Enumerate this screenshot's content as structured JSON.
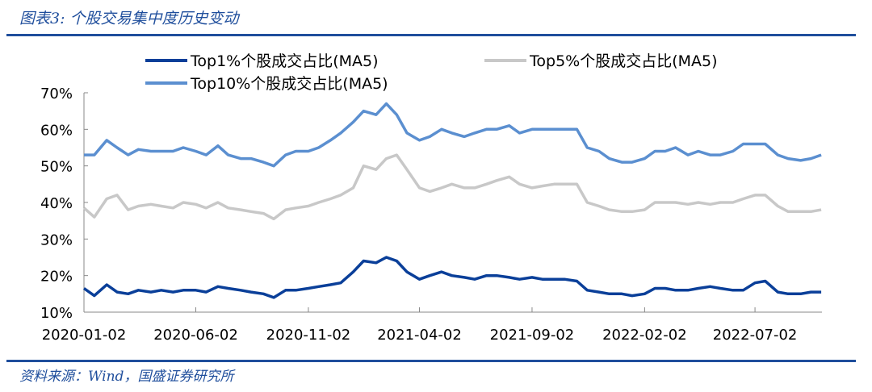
{
  "header": {
    "title": "图表3: 个股交易集中度历史变动"
  },
  "footer": {
    "source": "资料来源：Wind，国盛证券研究所"
  },
  "chart_data": {
    "type": "line",
    "title": "",
    "xlabel": "",
    "ylabel": "",
    "ylim": [
      10,
      70
    ],
    "xlim": [
      "2020-01-02",
      "2022-10-01"
    ],
    "yticks": [
      "70%",
      "60%",
      "50%",
      "40%",
      "30%",
      "20%",
      "10%"
    ],
    "yticks_values": [
      70,
      60,
      50,
      40,
      30,
      20,
      10
    ],
    "xticks": [
      "2020-01-02",
      "2020-06-02",
      "2020-11-02",
      "2021-04-02",
      "2021-09-02",
      "2022-02-02",
      "2022-07-02"
    ],
    "grid": false,
    "legend": "top",
    "x": [
      "2020-01-02",
      "2020-01-16",
      "2020-02-02",
      "2020-02-16",
      "2020-03-02",
      "2020-03-16",
      "2020-04-02",
      "2020-04-16",
      "2020-05-02",
      "2020-05-16",
      "2020-06-02",
      "2020-06-16",
      "2020-07-02",
      "2020-07-16",
      "2020-08-02",
      "2020-08-16",
      "2020-09-02",
      "2020-09-16",
      "2020-10-02",
      "2020-10-16",
      "2020-11-02",
      "2020-11-16",
      "2020-12-02",
      "2020-12-16",
      "2021-01-02",
      "2021-01-16",
      "2021-02-02",
      "2021-02-16",
      "2021-03-02",
      "2021-03-16",
      "2021-04-02",
      "2021-04-16",
      "2021-05-02",
      "2021-05-16",
      "2021-06-02",
      "2021-06-16",
      "2021-07-02",
      "2021-07-16",
      "2021-08-02",
      "2021-08-16",
      "2021-09-02",
      "2021-09-16",
      "2021-10-02",
      "2021-10-16",
      "2021-11-02",
      "2021-11-16",
      "2021-12-02",
      "2021-12-16",
      "2022-01-02",
      "2022-01-16",
      "2022-02-02",
      "2022-02-16",
      "2022-03-02",
      "2022-03-16",
      "2022-04-02",
      "2022-04-16",
      "2022-05-02",
      "2022-05-16",
      "2022-06-02",
      "2022-06-16",
      "2022-07-02",
      "2022-07-16",
      "2022-08-02",
      "2022-08-16",
      "2022-09-02",
      "2022-09-16",
      "2022-09-30"
    ],
    "series": [
      {
        "name": "Top1%个股成交占比(MA5)",
        "color": "#0a3f99",
        "values": [
          16.5,
          14.5,
          17.5,
          15.5,
          15,
          16,
          15.5,
          16,
          15.5,
          16,
          16,
          15.5,
          17,
          16.5,
          16,
          15.5,
          15,
          14,
          16,
          16,
          16.5,
          17,
          17.5,
          18,
          21,
          24,
          23.5,
          25,
          24,
          21,
          19,
          20,
          21,
          20,
          19.5,
          19,
          20,
          20,
          19.5,
          19,
          19.5,
          19,
          19,
          19,
          18.5,
          16,
          15.5,
          15,
          15,
          14.5,
          15,
          16.5,
          16.5,
          16,
          16,
          16.5,
          17,
          16.5,
          16,
          16,
          18,
          18.5,
          15.5,
          15,
          15,
          15.5,
          15.5
        ]
      },
      {
        "name": "Top5%个股成交占比(MA5)",
        "color": "#c8c8c8",
        "values": [
          38.5,
          36,
          41,
          42,
          38,
          39,
          39.5,
          39,
          38.5,
          40,
          39.5,
          38.5,
          40,
          38.5,
          38,
          37.5,
          37,
          35.5,
          38,
          38.5,
          39,
          40,
          41,
          42,
          44,
          50,
          49,
          52,
          53,
          49,
          44,
          43,
          44,
          45,
          44,
          44,
          45,
          46,
          47,
          45,
          44,
          44.5,
          45,
          45,
          45,
          40,
          39,
          38,
          37.5,
          37.5,
          38,
          40,
          40,
          40,
          39.5,
          40,
          39.5,
          40,
          40,
          41,
          42,
          42,
          39,
          37.5,
          37.5,
          37.5,
          38
        ]
      },
      {
        "name": "Top10%个股成交占比(MA5)",
        "color": "#5b8fd0",
        "values": [
          53,
          53,
          57,
          55,
          53,
          54.5,
          54,
          54,
          54,
          55,
          54,
          53,
          55.5,
          53,
          52,
          52,
          51,
          50,
          53,
          54,
          54,
          55,
          57,
          59,
          62,
          65,
          64,
          67,
          64,
          59,
          57,
          58,
          60,
          59,
          58,
          59,
          60,
          60,
          61,
          59,
          60,
          60,
          60,
          60,
          60,
          55,
          54,
          52,
          51,
          51,
          52,
          54,
          54,
          55,
          53,
          54,
          53,
          53,
          54,
          56,
          56,
          56,
          53,
          52,
          51.5,
          52,
          53
        ]
      }
    ]
  }
}
